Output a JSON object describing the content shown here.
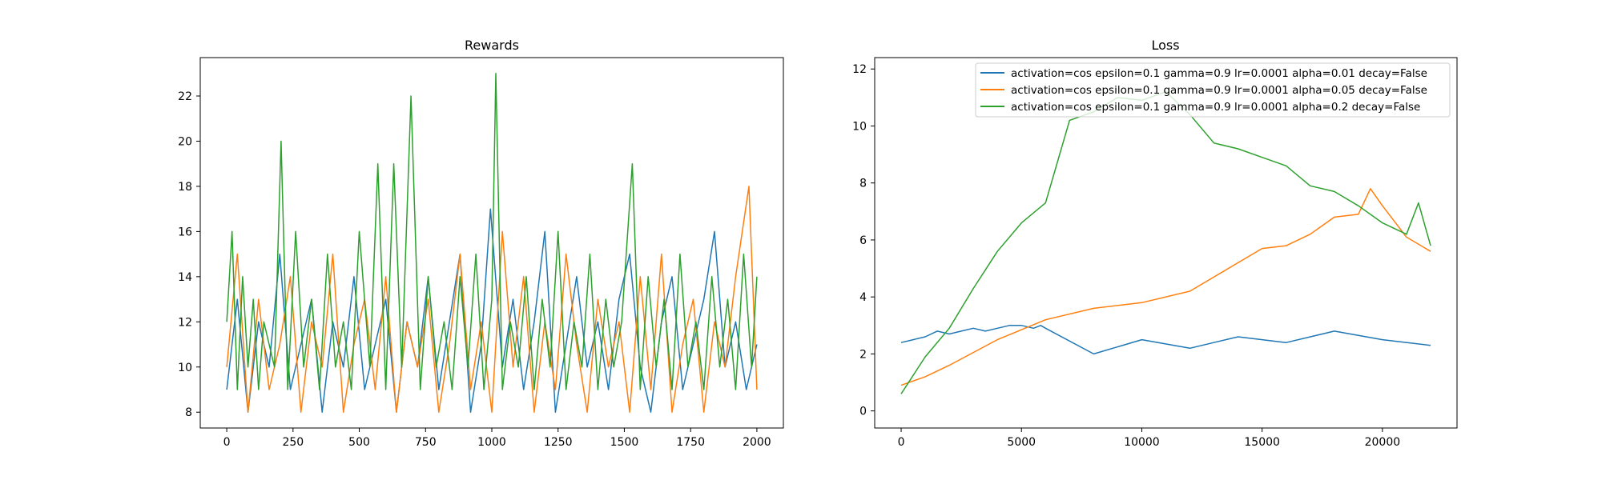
{
  "colors": {
    "series_1": "#1f77b4",
    "series_2": "#ff7f0e",
    "series_3": "#2ca02c",
    "axes": "#000000",
    "background": "#ffffff"
  },
  "chart_data": [
    {
      "type": "line",
      "title": "Rewards",
      "xlabel": "",
      "ylabel": "",
      "xlim": [
        -100,
        2100
      ],
      "ylim": [
        7.3,
        23.7
      ],
      "xticks": [
        0,
        250,
        500,
        750,
        1000,
        1250,
        1500,
        1750,
        2000
      ],
      "xtick_labels": [
        "0",
        "250",
        "500",
        "750",
        "1000",
        "1250",
        "1500",
        "1750",
        "2000"
      ],
      "yticks": [
        8,
        10,
        12,
        14,
        16,
        18,
        20,
        22
      ],
      "ytick_labels": [
        "8",
        "10",
        "12",
        "14",
        "16",
        "18",
        "20",
        "22"
      ],
      "grid": false,
      "legend": false,
      "series": [
        {
          "color_key": "series_1",
          "x": [
            0,
            40,
            80,
            120,
            160,
            200,
            240,
            280,
            320,
            360,
            400,
            440,
            480,
            520,
            560,
            600,
            640,
            680,
            720,
            760,
            800,
            840,
            880,
            920,
            960,
            995,
            1040,
            1080,
            1120,
            1160,
            1200,
            1240,
            1280,
            1320,
            1360,
            1400,
            1440,
            1480,
            1520,
            1560,
            1600,
            1640,
            1680,
            1720,
            1760,
            1800,
            1840,
            1880,
            1920,
            1960,
            2000
          ],
          "y": [
            9,
            13,
            8,
            12,
            10,
            15,
            9,
            11,
            13,
            8,
            12,
            10,
            14,
            9,
            11,
            13,
            8,
            12,
            10,
            14,
            9,
            12,
            15,
            8,
            11,
            17,
            10,
            13,
            9,
            12,
            16,
            8,
            11,
            14,
            10,
            12,
            9,
            13,
            15,
            10,
            8,
            12,
            14,
            9,
            11,
            13,
            16,
            10,
            12,
            9,
            11
          ]
        },
        {
          "color_key": "series_2",
          "x": [
            0,
            40,
            80,
            120,
            160,
            200,
            240,
            280,
            320,
            360,
            400,
            440,
            480,
            520,
            560,
            600,
            640,
            680,
            720,
            760,
            800,
            840,
            880,
            920,
            960,
            1000,
            1040,
            1080,
            1120,
            1160,
            1200,
            1240,
            1280,
            1320,
            1360,
            1400,
            1440,
            1480,
            1520,
            1560,
            1600,
            1640,
            1680,
            1720,
            1760,
            1800,
            1840,
            1880,
            1920,
            1970,
            2000
          ],
          "y": [
            10,
            15,
            8,
            13,
            9,
            11,
            14,
            8,
            12,
            10,
            15,
            8,
            11,
            13,
            9,
            14,
            8,
            12,
            10,
            13,
            8,
            11,
            15,
            9,
            12,
            8,
            16,
            10,
            14,
            8,
            12,
            9,
            15,
            11,
            8,
            13,
            10,
            12,
            8,
            14,
            9,
            15,
            8,
            11,
            13,
            8,
            12,
            10,
            14,
            18,
            9
          ]
        },
        {
          "color_key": "series_3",
          "x": [
            0,
            20,
            40,
            60,
            80,
            100,
            120,
            140,
            160,
            180,
            205,
            230,
            260,
            290,
            320,
            350,
            380,
            410,
            440,
            470,
            500,
            540,
            570,
            600,
            630,
            660,
            695,
            730,
            760,
            790,
            820,
            850,
            880,
            910,
            940,
            970,
            1000,
            1015,
            1040,
            1070,
            1100,
            1130,
            1160,
            1190,
            1220,
            1250,
            1280,
            1310,
            1340,
            1370,
            1400,
            1430,
            1460,
            1490,
            1530,
            1560,
            1590,
            1620,
            1650,
            1680,
            1710,
            1740,
            1770,
            1800,
            1830,
            1860,
            1890,
            1920,
            1950,
            1980,
            2000
          ],
          "y": [
            12,
            16,
            9,
            14,
            10,
            13,
            9,
            12,
            11,
            10,
            20,
            9,
            16,
            10,
            13,
            9,
            15,
            10,
            12,
            9,
            16,
            10,
            19,
            9,
            19,
            10,
            22,
            9,
            14,
            10,
            12,
            9,
            14,
            10,
            15,
            9,
            13,
            23,
            9,
            12,
            10,
            14,
            9,
            13,
            10,
            16,
            9,
            12,
            10,
            15,
            9,
            13,
            10,
            12,
            19,
            9,
            14,
            10,
            13,
            9,
            15,
            10,
            12,
            9,
            14,
            10,
            13,
            9,
            15,
            10,
            14
          ]
        }
      ]
    },
    {
      "type": "line",
      "title": "Loss",
      "xlabel": "",
      "ylabel": "",
      "xlim": [
        -1100,
        23100
      ],
      "ylim": [
        -0.6,
        12.4
      ],
      "xticks": [
        0,
        5000,
        10000,
        15000,
        20000
      ],
      "xtick_labels": [
        "0",
        "5000",
        "10000",
        "15000",
        "20000"
      ],
      "yticks": [
        0,
        2,
        4,
        6,
        8,
        10,
        12
      ],
      "ytick_labels": [
        "0",
        "2",
        "4",
        "6",
        "8",
        "10",
        "12"
      ],
      "grid": false,
      "legend": true,
      "legend_position": "top-right",
      "series": [
        {
          "name": "activation=cos epsilon=0.1 gamma=0.9 lr=0.0001 alpha=0.01 decay=False",
          "color_key": "series_1",
          "x": [
            0,
            500,
            1000,
            1500,
            2000,
            2500,
            3000,
            3500,
            4000,
            4500,
            5000,
            5500,
            5800,
            6000,
            8000,
            10000,
            12000,
            14000,
            16000,
            18000,
            20000,
            22000
          ],
          "y": [
            2.4,
            2.5,
            2.6,
            2.8,
            2.7,
            2.8,
            2.9,
            2.8,
            2.9,
            3.0,
            3.0,
            2.9,
            3.0,
            2.9,
            2.0,
            2.5,
            2.2,
            2.6,
            2.4,
            2.8,
            2.5,
            2.3
          ]
        },
        {
          "name": "activation=cos epsilon=0.1 gamma=0.9 lr=0.0001 alpha=0.05 decay=False",
          "color_key": "series_2",
          "x": [
            0,
            1000,
            2000,
            4000,
            6000,
            8000,
            10000,
            12000,
            14000,
            15000,
            16000,
            17000,
            18000,
            19000,
            19500,
            20000,
            21000,
            22000
          ],
          "y": [
            0.9,
            1.2,
            1.6,
            2.5,
            3.2,
            3.6,
            3.8,
            4.2,
            5.2,
            5.7,
            5.8,
            6.2,
            6.8,
            6.9,
            7.8,
            7.2,
            6.1,
            5.6
          ]
        },
        {
          "name": "activation=cos epsilon=0.1 gamma=0.9 lr=0.0001 alpha=0.2 decay=False",
          "color_key": "series_3",
          "x": [
            0,
            1000,
            2000,
            3000,
            4000,
            5000,
            6000,
            7000,
            8000,
            9000,
            10000,
            11000,
            12000,
            13000,
            14000,
            15000,
            16000,
            17000,
            18000,
            19000,
            20000,
            21000,
            21500,
            22000
          ],
          "y": [
            0.6,
            1.9,
            2.9,
            4.3,
            5.6,
            6.6,
            7.3,
            10.2,
            10.5,
            11.0,
            10.9,
            11.2,
            10.4,
            9.4,
            9.2,
            8.9,
            8.6,
            7.9,
            7.7,
            7.2,
            6.6,
            6.2,
            7.3,
            5.8
          ]
        }
      ]
    }
  ]
}
